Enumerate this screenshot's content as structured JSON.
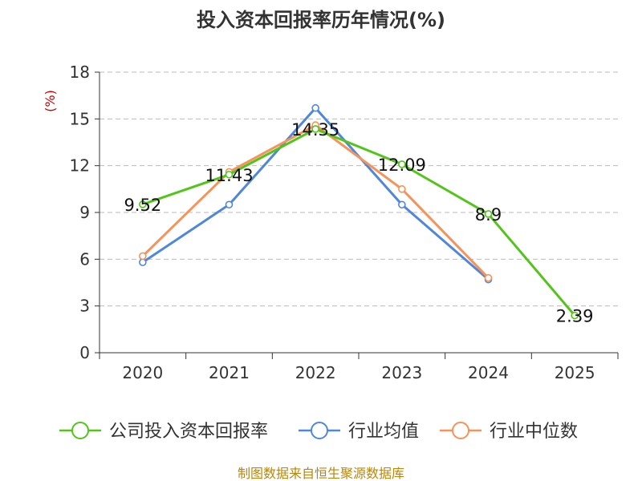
{
  "chart_data": {
    "type": "line",
    "title": "投入资本回报率历年情况(%)",
    "ylabel": "(%)",
    "xlabel": "",
    "categories": [
      "2020",
      "2021",
      "2022",
      "2023",
      "2024",
      "2025"
    ],
    "ylim": [
      0,
      18
    ],
    "yticks": [
      0,
      3,
      6,
      9,
      12,
      15,
      18
    ],
    "grid": true,
    "legend_position": "bottom",
    "series": [
      {
        "name": "公司投入资本回报率",
        "color": "#52c41a",
        "values": [
          9.52,
          11.43,
          14.35,
          12.09,
          8.9,
          2.39
        ],
        "labels": [
          "9.52",
          "11.43",
          "14.35",
          "12.09",
          "8.9",
          "2.39"
        ]
      },
      {
        "name": "行业均值",
        "color": "#5087d9",
        "values": [
          5.8,
          9.5,
          15.7,
          9.5,
          4.7,
          null
        ]
      },
      {
        "name": "行业中位数",
        "color": "#f5935a",
        "values": [
          6.2,
          11.6,
          14.6,
          10.5,
          4.8,
          null
        ]
      }
    ]
  },
  "source": "制图数据来自恒生聚源数据库"
}
